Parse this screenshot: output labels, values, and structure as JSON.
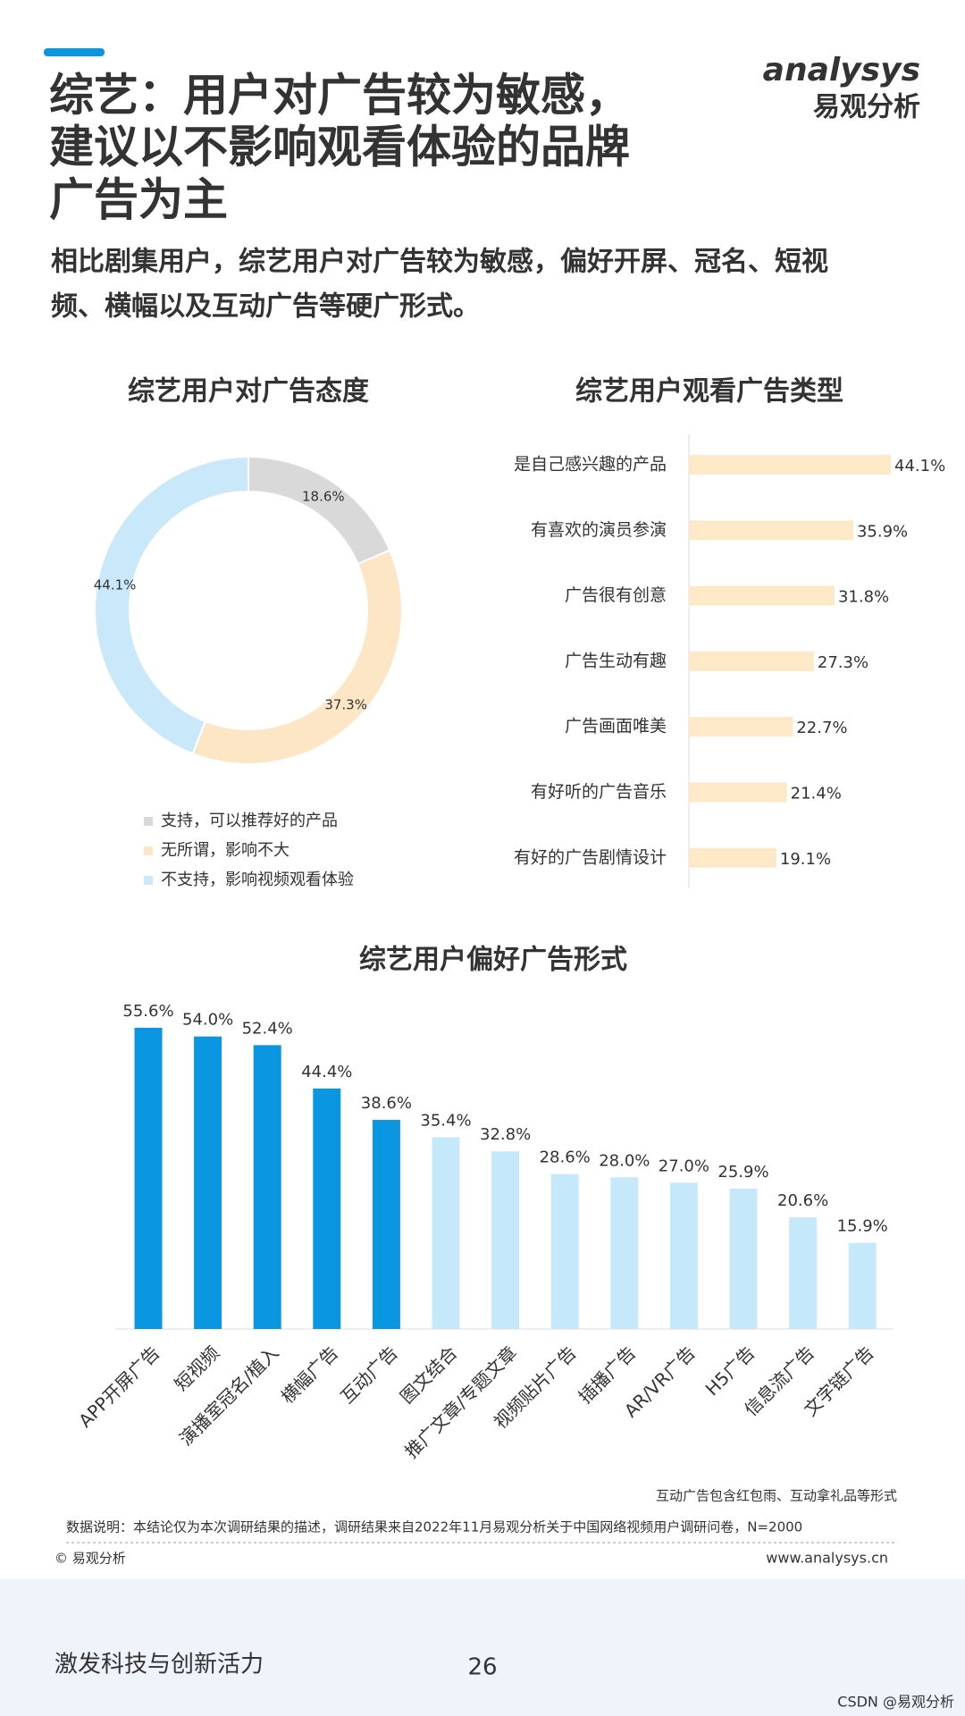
{
  "header": {
    "title_lines": [
      "综艺：用户对广告较为敏感，",
      "建议以不影响观看体验的品牌",
      "广告为主"
    ],
    "subtitle_lines": [
      "相比剧集用户，综艺用户对广告较为敏感，偏好开屏、冠名、短视",
      "频、横幅以及互动广告等硬广形式。"
    ]
  },
  "logo": {
    "brand": "analysys",
    "name": "易观分析"
  },
  "chart_data": [
    {
      "type": "donut",
      "title": "综艺用户对广告态度",
      "categories": [
        "支持，可以推荐好的产品",
        "无所谓，影响不大",
        "不支持，影响视频观看体验"
      ],
      "values": [
        18.6,
        37.3,
        44.1
      ],
      "value_labels": [
        "18.6%",
        "37.3%",
        "44.1%"
      ],
      "colors": [
        "#d9d9d9",
        "#fde6c6",
        "#c9e8fa"
      ]
    },
    {
      "type": "barh",
      "title": "综艺用户观看广告类型",
      "categories": [
        "是自己感兴趣的产品",
        "有喜欢的演员参演",
        "广告很有创意",
        "广告生动有趣",
        "广告画面唯美",
        "有好听的广告音乐",
        "有好的广告剧情设计"
      ],
      "values": [
        44.1,
        35.9,
        31.8,
        27.3,
        22.7,
        21.4,
        19.1
      ],
      "value_labels": [
        "44.1%",
        "35.9%",
        "31.8%",
        "27.3%",
        "22.7%",
        "21.4%",
        "19.1%"
      ],
      "color": "#fde8c8"
    },
    {
      "type": "bar",
      "title": "综艺用户偏好广告形式",
      "categories": [
        "APP开屏广告",
        "短视频",
        "演播室冠名/植入",
        "横幅广告",
        "互动广告",
        "图文结合",
        "推广文章/专题文章",
        "视频贴片广告",
        "插播广告",
        "AR/VR广告",
        "H5广告",
        "信息流广告",
        "文字链广告"
      ],
      "values": [
        55.6,
        54.0,
        52.4,
        44.4,
        38.6,
        35.4,
        32.8,
        28.6,
        28.0,
        27.0,
        25.9,
        20.6,
        15.9
      ],
      "value_labels": [
        "55.6%",
        "54.0%",
        "52.4%",
        "44.4%",
        "38.6%",
        "35.4%",
        "32.8%",
        "28.6%",
        "28.0%",
        "27.0%",
        "25.9%",
        "20.6%",
        "15.9%"
      ],
      "colors": [
        "#0a96e0",
        "#0a96e0",
        "#0a96e0",
        "#0a96e0",
        "#0a96e0",
        "#c6e8fb",
        "#c6e8fb",
        "#c6e8fb",
        "#c6e8fb",
        "#c6e8fb",
        "#c6e8fb",
        "#c6e8fb",
        "#c6e8fb"
      ]
    }
  ],
  "notes": {
    "chart_note": "互动广告包含红包雨、互动拿礼品等形式",
    "data_note": "数据说明：本结论仅为本次调研结果的描述，调研结果来自2022年11月易观分析关于中国网络视频用户调研问卷，N=2000",
    "copyright": "© 易观分析",
    "website": "www.analysys.cn"
  },
  "footer": {
    "slogan": "激发科技与创新活力",
    "page": "26",
    "source": "CSDN @易观分析"
  }
}
